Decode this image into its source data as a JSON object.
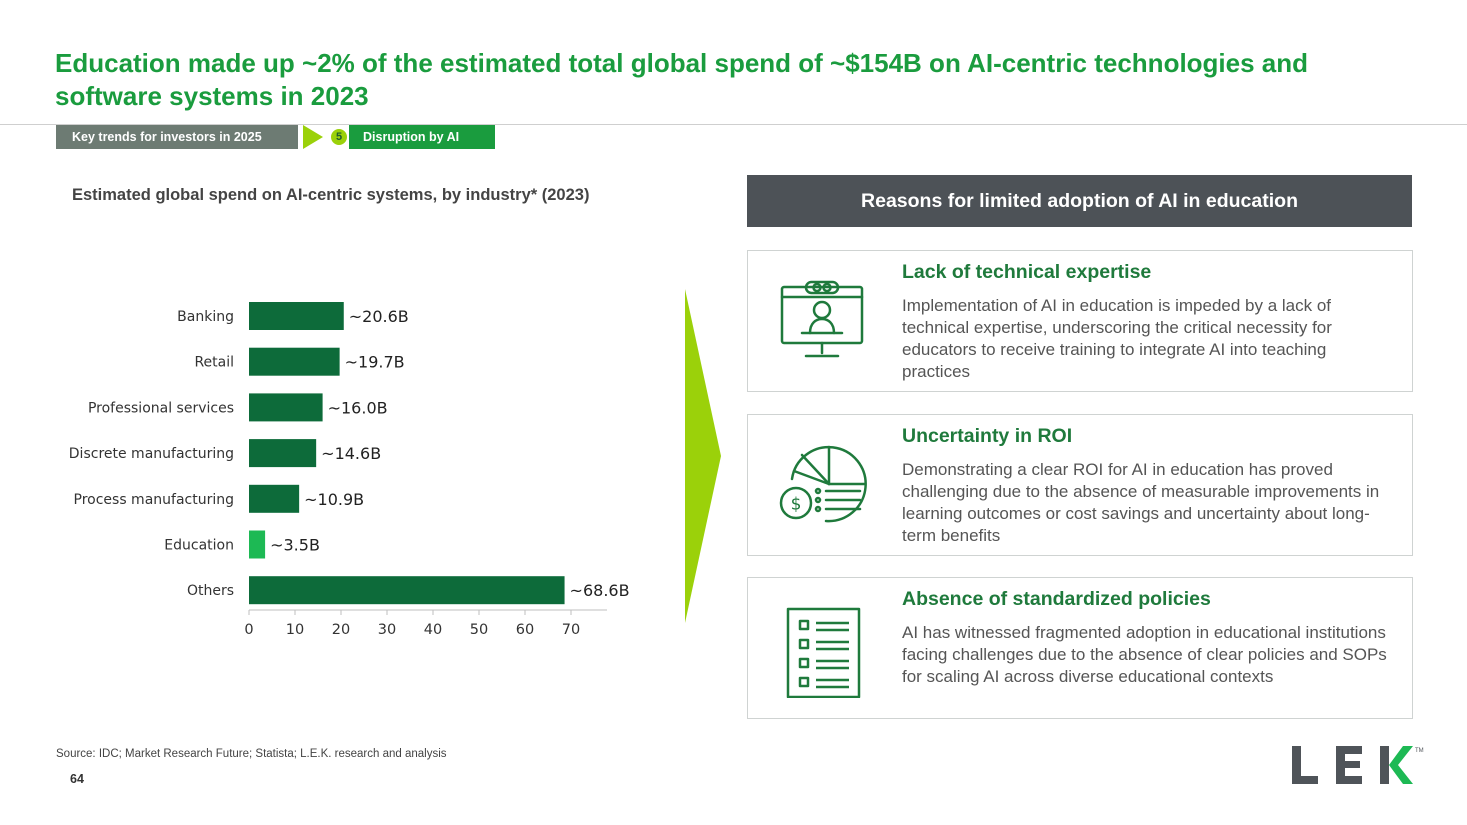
{
  "header": {
    "title": "Education made up ~2% of the estimated total global spend of ~$154B on AI-centric technologies and software systems in 2023",
    "breadcrumb_section": "Key trends for investors in 2025",
    "breadcrumb_number": "5",
    "breadcrumb_topic": "Disruption by AI"
  },
  "chart_data": {
    "type": "bar",
    "orientation": "horizontal",
    "title": "Estimated global spend on AI-centric systems, by industry* (2023)",
    "categories": [
      "Banking",
      "Retail",
      "Professional services",
      "Discrete manufacturing",
      "Process manufacturing",
      "Education",
      "Others"
    ],
    "values": [
      20.6,
      19.7,
      16.0,
      14.6,
      10.9,
      3.5,
      68.6
    ],
    "value_labels": [
      "~20.6B",
      "~19.7B",
      "~16.0B",
      "~14.6B",
      "~10.9B",
      "~3.5B",
      "~68.6B"
    ],
    "highlight_category": "Education",
    "x_ticks": [
      0,
      10,
      20,
      30,
      40,
      50,
      60,
      70
    ],
    "xlim": [
      0,
      70
    ],
    "grid": false,
    "colors": {
      "bar": "#0d6b3a",
      "highlight": "#1db954"
    }
  },
  "reasons": {
    "header": "Reasons for limited adoption of AI in education",
    "items": [
      {
        "icon": "computer-user-icon",
        "title": "Lack of technical expertise",
        "text": "Implementation of AI in education is impeded by a lack of technical expertise, underscoring the critical necessity for educators to receive training to integrate AI into teaching practices"
      },
      {
        "icon": "pie-chart-dollar-icon",
        "title": "Uncertainty in ROI",
        "text": "Demonstrating a clear ROI for AI in education has proved challenging due to the absence of measurable improvements in learning outcomes or cost savings and uncertainty about long-term benefits"
      },
      {
        "icon": "checklist-icon",
        "title": "Absence of standardized policies",
        "text": "AI has witnessed fragmented adoption in educational institutions facing challenges due to the absence of clear policies and SOPs for scaling AI across diverse educational contexts"
      }
    ]
  },
  "footer": {
    "source": "Source:  IDC; Market Research Future; Statista; L.E.K. research and analysis",
    "page_number": "64",
    "logo_text": "LEK",
    "logo_tm": "TM"
  },
  "colors": {
    "title_green": "#1a9c3e",
    "dark_green": "#1f7a3c",
    "lime": "#9bd10a",
    "header_gray": "#4d5257"
  }
}
